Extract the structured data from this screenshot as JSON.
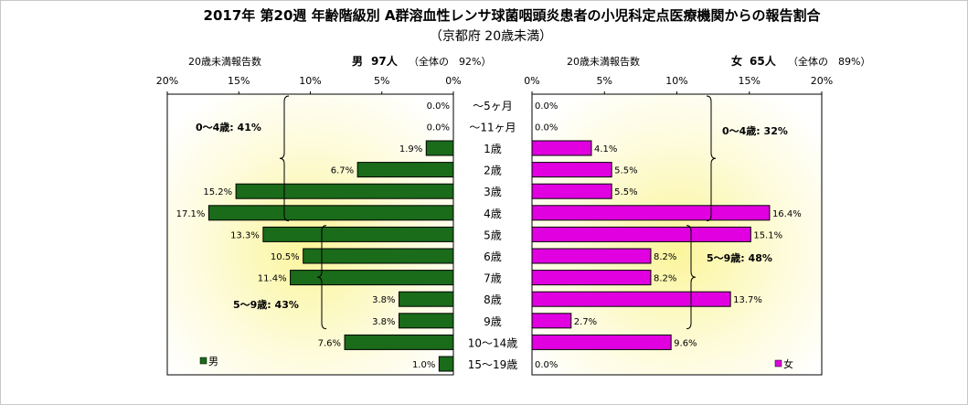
{
  "title": "2017年 第20週 年齢階級別 A群溶血性レンサ球菌咽頭炎患者の小児科定点医療機関からの報告割合",
  "subtitle": "（京都府 20歳未満）",
  "male_header": {
    "label": "20歳未満報告数",
    "gender": "男",
    "count": "97人",
    "share": "（全体の　92%）"
  },
  "female_header": {
    "label": "20歳未満報告数",
    "gender": "女",
    "count": "65人",
    "share": "（全体の　89%）"
  },
  "male_ticks": [
    "20%",
    "15%",
    "10%",
    "5%",
    "0%"
  ],
  "female_ticks": [
    "0%",
    "5%",
    "10%",
    "15%",
    "20%"
  ],
  "colors": {
    "male": "#1a6b1a",
    "female": "#e000e0"
  },
  "chart_data": {
    "type": "bar",
    "orientation": "horizontal-butterfly",
    "categories": [
      "～5ヶ月",
      "～11ヶ月",
      "1歳",
      "2歳",
      "3歳",
      "4歳",
      "5歳",
      "6歳",
      "7歳",
      "8歳",
      "9歳",
      "10～14歳",
      "15～19歳"
    ],
    "series": [
      {
        "name": "男",
        "values": [
          0.0,
          0.0,
          1.9,
          6.7,
          15.2,
          17.1,
          13.3,
          10.5,
          11.4,
          3.8,
          3.8,
          7.6,
          1.0
        ],
        "labels": [
          "0.0%",
          "0.0%",
          "1.9%",
          "6.7%",
          "15.2%",
          "17.1%",
          "13.3%",
          "10.5%",
          "11.4%",
          "3.8%",
          "3.8%",
          "7.6%",
          "1.0%"
        ]
      },
      {
        "name": "女",
        "values": [
          0.0,
          0.0,
          4.1,
          5.5,
          5.5,
          16.4,
          15.1,
          8.2,
          8.2,
          13.7,
          2.7,
          9.6,
          0.0
        ],
        "labels": [
          "0.0%",
          "0.0%",
          "4.1%",
          "5.5%",
          "5.5%",
          "16.4%",
          "15.1%",
          "8.2%",
          "8.2%",
          "13.7%",
          "2.7%",
          "9.6%",
          "0.0%"
        ]
      }
    ],
    "xlim": [
      0,
      20
    ],
    "annotations": {
      "male": [
        {
          "text": "0～4歳: 41%"
        },
        {
          "text": "5～9歳: 43%"
        }
      ],
      "female": [
        {
          "text": "0～4歳: 32%"
        },
        {
          "text": "5～9歳: 48%"
        }
      ]
    },
    "legend": {
      "male": "男",
      "female": "女"
    }
  }
}
